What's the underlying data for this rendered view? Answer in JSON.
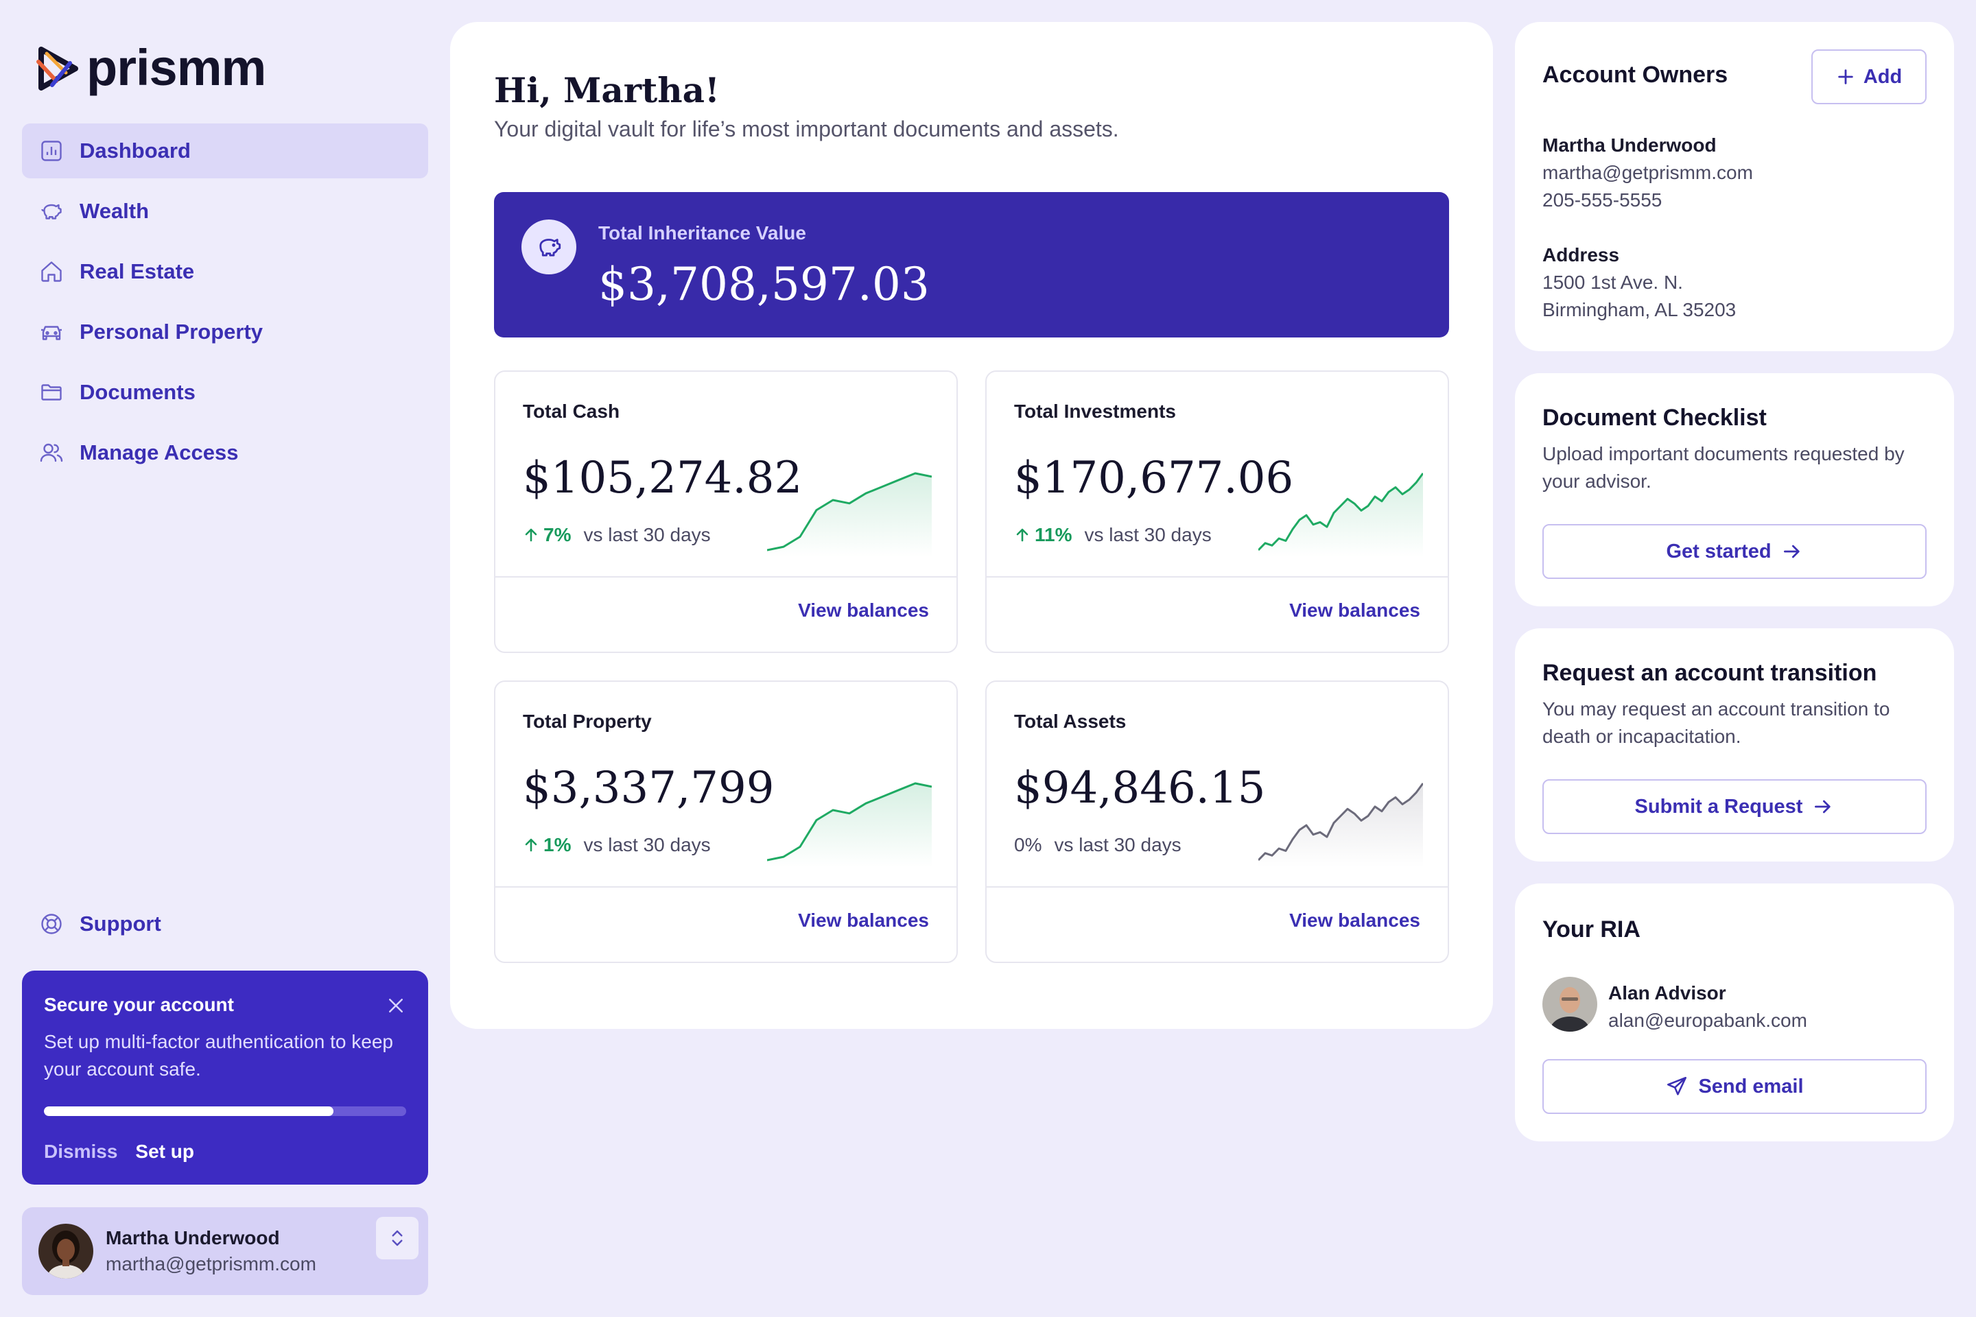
{
  "app": {
    "brand": "prismm"
  },
  "sidebar": {
    "items": [
      {
        "label": "Dashboard",
        "icon": "chart-icon",
        "active": true
      },
      {
        "label": "Wealth",
        "icon": "piggy-bank-icon",
        "active": false
      },
      {
        "label": "Real Estate",
        "icon": "home-icon",
        "active": false
      },
      {
        "label": "Personal Property",
        "icon": "car-icon",
        "active": false
      },
      {
        "label": "Documents",
        "icon": "folder-icon",
        "active": false
      },
      {
        "label": "Manage Access",
        "icon": "users-icon",
        "active": false
      }
    ],
    "support_label": "Support",
    "mfa": {
      "title": "Secure your account",
      "description": "Set up multi-factor authentication to keep your account safe.",
      "progress": 0.8,
      "dismiss_label": "Dismiss",
      "setup_label": "Set up"
    },
    "user": {
      "name": "Martha Underwood",
      "email": "martha@getprismm.com"
    }
  },
  "main": {
    "greeting": "Hi, Martha!",
    "subtitle": "Your digital vault for life’s most important documents and assets.",
    "hero": {
      "label": "Total Inheritance Value",
      "value": "$3,708,597.03"
    },
    "cards": [
      {
        "label": "Total Cash",
        "value": "$105,274.82",
        "change": "7%",
        "direction": "up",
        "vs": "vs last 30 days",
        "link": "View balances",
        "trend_color": "#1faa63",
        "trend": [
          2,
          3,
          6,
          14,
          17,
          16,
          19,
          21,
          23,
          25,
          24
        ]
      },
      {
        "label": "Total Investments",
        "value": "$170,677.06",
        "change": "11%",
        "direction": "up",
        "vs": "vs last 30 days",
        "link": "View balances",
        "trend_color": "#1faa63",
        "trend": [
          2,
          5,
          4,
          7,
          6,
          11,
          15,
          17,
          13,
          14,
          12,
          18,
          21,
          24,
          22,
          19,
          21,
          25,
          23,
          27,
          29,
          26,
          28,
          31,
          35
        ]
      },
      {
        "label": "Total Property",
        "value": "$3,337,799",
        "change": "1%",
        "direction": "up",
        "vs": "vs last 30 days",
        "link": "View balances",
        "trend_color": "#1faa63",
        "trend": [
          2,
          3,
          6,
          14,
          17,
          16,
          19,
          21,
          23,
          25,
          24
        ]
      },
      {
        "label": "Total Assets",
        "value": "$94,846.15",
        "change": "0%",
        "direction": "flat",
        "vs": "vs last 30 days",
        "link": "View balances",
        "trend_color": "#6c6b7b",
        "trend": [
          2,
          5,
          4,
          7,
          6,
          11,
          15,
          17,
          13,
          14,
          12,
          18,
          21,
          24,
          22,
          19,
          21,
          25,
          23,
          27,
          29,
          26,
          28,
          31,
          35
        ]
      }
    ]
  },
  "right": {
    "owners": {
      "title": "Account Owners",
      "add_label": "Add",
      "name": "Martha Underwood",
      "email": "martha@getprismm.com",
      "phone": "205-555-5555",
      "address_label": "Address",
      "address_line1": "1500 1st Ave. N.",
      "address_line2": "Birmingham, AL 35203"
    },
    "checklist": {
      "title": "Document Checklist",
      "description": "Upload important documents requested by your advisor.",
      "button": "Get started"
    },
    "transition": {
      "title": "Request an account transition",
      "description": "You may request an account transition to death or incapacitation.",
      "button": "Submit a Request"
    },
    "ria": {
      "title": "Your RIA",
      "name": "Alan Advisor",
      "email": "alan@europabank.com",
      "button": "Send email"
    }
  },
  "colors": {
    "accent": "#3b2fb3",
    "hero": "#382aa9",
    "mfa": "#3d2bc2",
    "positive": "#189a5c",
    "background": "#eeecfb"
  }
}
